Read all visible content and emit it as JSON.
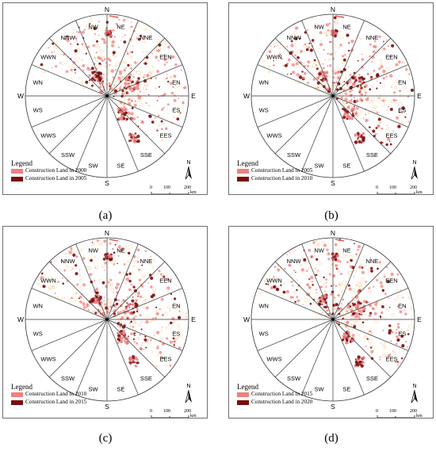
{
  "panels": [
    {
      "caption": "(a)",
      "legend_title": "Legend",
      "legend_items": [
        {
          "label": "Construction Land in 2000",
          "color": "#f08080"
        },
        {
          "label": "Construction Land in 2005",
          "color": "#7b0c0c"
        }
      ],
      "north_label": "N",
      "scale_ticks": [
        "0",
        "100",
        "200"
      ],
      "scale_unit": "km"
    },
    {
      "caption": "(b)",
      "legend_title": "Legend",
      "legend_items": [
        {
          "label": "Construction Land in 2005",
          "color": "#f08080"
        },
        {
          "label": "Construction Land in 2010",
          "color": "#7b0c0c"
        }
      ],
      "north_label": "N",
      "scale_ticks": [
        "0",
        "100",
        "200"
      ],
      "scale_unit": "km"
    },
    {
      "caption": "(c)",
      "legend_title": "Legend",
      "legend_items": [
        {
          "label": "Construction Land in 2010",
          "color": "#f08080"
        },
        {
          "label": "Construction Land in 2015",
          "color": "#7b0c0c"
        }
      ],
      "north_label": "N",
      "scale_ticks": [
        "0",
        "100",
        "200"
      ],
      "scale_unit": "km"
    },
    {
      "caption": "(d)",
      "legend_title": "Legend",
      "legend_items": [
        {
          "label": "Construction Land in 2015",
          "color": "#f08080"
        },
        {
          "label": "Construction Land in 2020",
          "color": "#7b0c0c"
        }
      ],
      "north_label": "N",
      "scale_ticks": [
        "0",
        "100",
        "200"
      ],
      "scale_unit": "km"
    }
  ],
  "cardinals": [
    "N",
    "E",
    "S",
    "W"
  ],
  "sectors": [
    "NE",
    "NNE",
    "EEN",
    "EN",
    "ES",
    "EES",
    "SSE",
    "SE",
    "SW",
    "SSW",
    "WWS",
    "WS",
    "WN",
    "WWN",
    "NNW",
    "NW"
  ]
}
